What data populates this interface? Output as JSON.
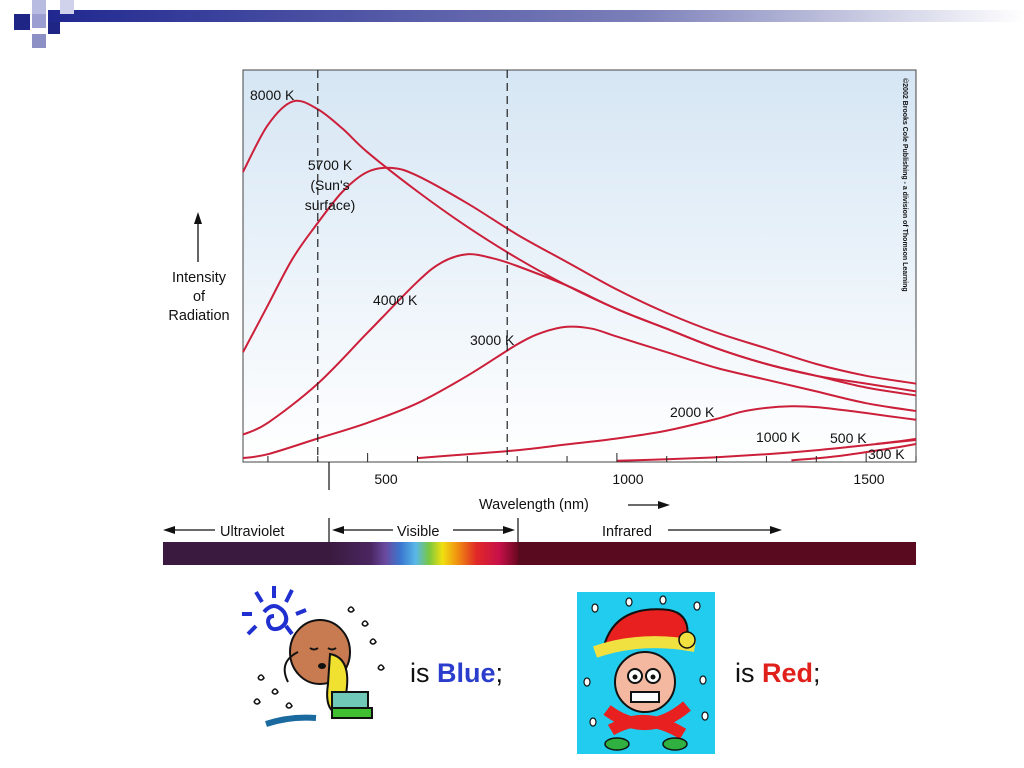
{
  "colors": {
    "curve": "#cc1f3a",
    "plot_bg_top": "#d6e6f4",
    "plot_bg_bottom": "#ffffff",
    "blue_word": "#2b3dcc",
    "red_word": "#e0201a"
  },
  "chart_data": {
    "type": "line",
    "title": "",
    "xlabel": "Wavelength (nm)",
    "ylabel": "Intensity of Radiation",
    "ylabel_lines": [
      "Intensity",
      "of",
      "Radiation"
    ],
    "xlim": [
      250,
      1600
    ],
    "ylim": [
      0,
      100
    ],
    "x_ticks": [
      500,
      1000,
      1500
    ],
    "x_tick_labels": [
      "500",
      "1000",
      "1500"
    ],
    "grid": false,
    "copyright": "©2002 Brooks Cole Publishing - a division of Thomson Learning",
    "visible_band": [
      400,
      780
    ],
    "series": [
      {
        "name": "8000 K",
        "label_lines": [
          "8000 K"
        ],
        "x": [
          250,
          300,
          350,
          400,
          450,
          500,
          600,
          700,
          800,
          900,
          1000,
          1100,
          1200,
          1300,
          1400,
          1500,
          1600
        ],
        "y": [
          74,
          86,
          92,
          90,
          85,
          79,
          69,
          60,
          52,
          45,
          39,
          34,
          29,
          25,
          22,
          20,
          18
        ]
      },
      {
        "name": "5700 K (Sun's surface)",
        "label_lines": [
          "5700 K",
          "(Sun's",
          "surface)"
        ],
        "x": [
          250,
          300,
          350,
          400,
          450,
          500,
          550,
          600,
          700,
          800,
          900,
          1000,
          1100,
          1200,
          1300,
          1400,
          1500,
          1600
        ],
        "y": [
          28,
          40,
          52,
          61,
          69,
          74,
          75,
          73,
          66,
          58,
          51,
          44,
          38,
          33,
          29,
          25,
          22,
          20
        ]
      },
      {
        "name": "4000 K",
        "label_lines": [
          "4000 K"
        ],
        "x": [
          250,
          300,
          400,
          500,
          600,
          650,
          700,
          750,
          800,
          900,
          1000,
          1100,
          1200,
          1300,
          1400,
          1500,
          1600
        ],
        "y": [
          7,
          10,
          20,
          33,
          46,
          51,
          53,
          52,
          50,
          45,
          39,
          34,
          29,
          25,
          22,
          19,
          17
        ]
      },
      {
        "name": "3000 K",
        "label_lines": [
          "3000 K"
        ],
        "x": [
          250,
          300,
          400,
          500,
          600,
          700,
          800,
          850,
          900,
          950,
          1000,
          1100,
          1200,
          1300,
          1400,
          1500,
          1600
        ],
        "y": [
          1,
          2,
          6,
          10,
          15,
          22,
          30,
          33,
          34.5,
          34,
          32,
          28,
          24,
          21,
          18,
          15,
          13
        ]
      },
      {
        "name": "2000 K",
        "label_lines": [
          "2000 K"
        ],
        "x": [
          600,
          700,
          800,
          900,
          1000,
          1100,
          1200,
          1250,
          1300,
          1350,
          1400,
          1450,
          1500,
          1550,
          1600
        ],
        "y": [
          1,
          2,
          3,
          4.5,
          6,
          8,
          11,
          12.8,
          13.8,
          14.2,
          14,
          13.3,
          12.5,
          11.6,
          10.8
        ]
      },
      {
        "name": "1000 K",
        "label_lines": [
          "1000 K"
        ],
        "x": [
          1000,
          1100,
          1200,
          1300,
          1400,
          1500,
          1600
        ],
        "y": [
          0.3,
          0.7,
          1.2,
          2,
          3,
          4.3,
          5.6
        ]
      },
      {
        "name": "500 K",
        "label_lines": [
          "500 K"
        ],
        "x": [
          1350,
          1450,
          1550,
          1600
        ],
        "y": [
          0.4,
          1.6,
          3.5,
          4.6
        ]
      },
      {
        "name": "300 K",
        "label_lines": [
          "300 K"
        ],
        "x": [
          1520,
          1560,
          1600
        ],
        "y": [
          4.6,
          5.2,
          5.9
        ]
      }
    ],
    "regions": [
      {
        "name": "Ultraviolet",
        "direction": "left"
      },
      {
        "name": "Visible",
        "direction": "both"
      },
      {
        "name": "Infrared",
        "direction": "right"
      }
    ]
  },
  "caption": {
    "left_prefix": "is ",
    "left_color_word": "Blue",
    "left_suffix": ";",
    "right_prefix": "is ",
    "right_color_word": "Red",
    "right_suffix": ";"
  },
  "images": {
    "left": "hot-sweating-boy",
    "right": "freezing-boy-in-red-hat"
  }
}
